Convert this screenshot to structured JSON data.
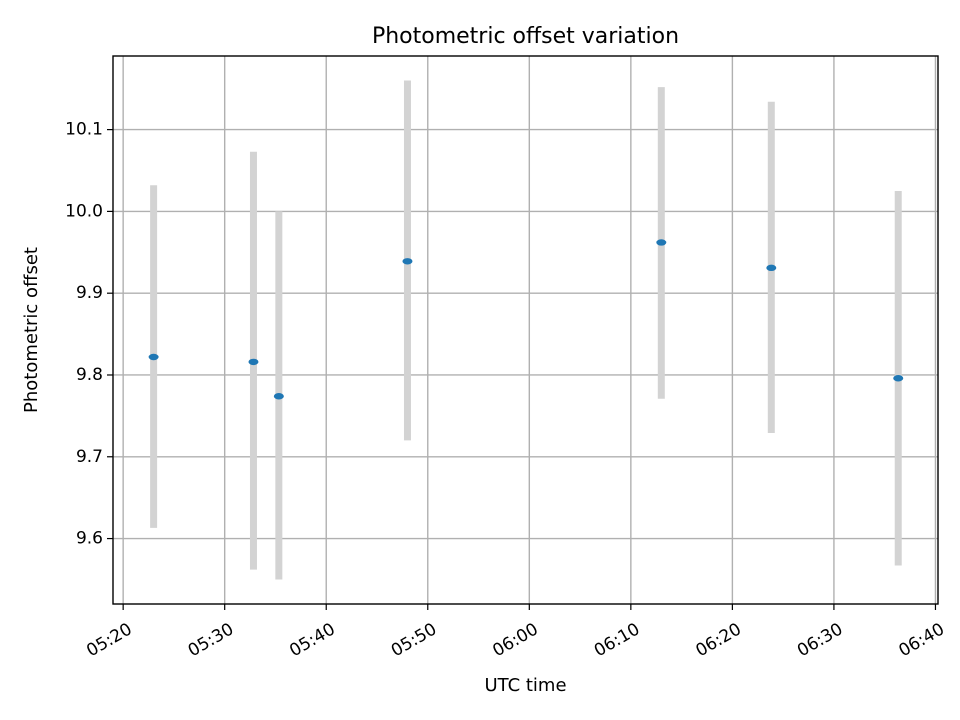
{
  "chart_data": {
    "type": "scatter",
    "title": "Photometric offset variation",
    "xlabel": "UTC time",
    "ylabel": "Photometric offset",
    "grid": true,
    "x_ticks": [
      "05:20",
      "05:30",
      "05:40",
      "05:50",
      "06:00",
      "06:10",
      "06:20",
      "06:30",
      "06:40"
    ],
    "y_ticks": [
      "9.6",
      "9.7",
      "9.8",
      "9.9",
      "10.0",
      "10.1"
    ],
    "xlim": [
      "05:19",
      "06:40:15"
    ],
    "ylim": [
      9.52,
      10.19
    ],
    "points": [
      {
        "x": "05:23",
        "y": 9.822,
        "err_low": 9.613,
        "err_high": 10.032
      },
      {
        "x": "05:32:50",
        "y": 9.816,
        "err_low": 9.562,
        "err_high": 10.073
      },
      {
        "x": "05:35:20",
        "y": 9.774,
        "err_low": 9.55,
        "err_high": 10.0
      },
      {
        "x": "05:48",
        "y": 9.939,
        "err_low": 9.72,
        "err_high": 10.16
      },
      {
        "x": "06:13",
        "y": 9.962,
        "err_low": 9.771,
        "err_high": 10.152
      },
      {
        "x": "06:23:50",
        "y": 9.931,
        "err_low": 9.729,
        "err_high": 10.134
      },
      {
        "x": "06:36:20",
        "y": 9.796,
        "err_low": 9.567,
        "err_high": 10.025
      }
    ],
    "colors": {
      "point": "#1f77b4",
      "errorbar": "#d3d3d3",
      "grid": "#b0b0b0"
    }
  }
}
